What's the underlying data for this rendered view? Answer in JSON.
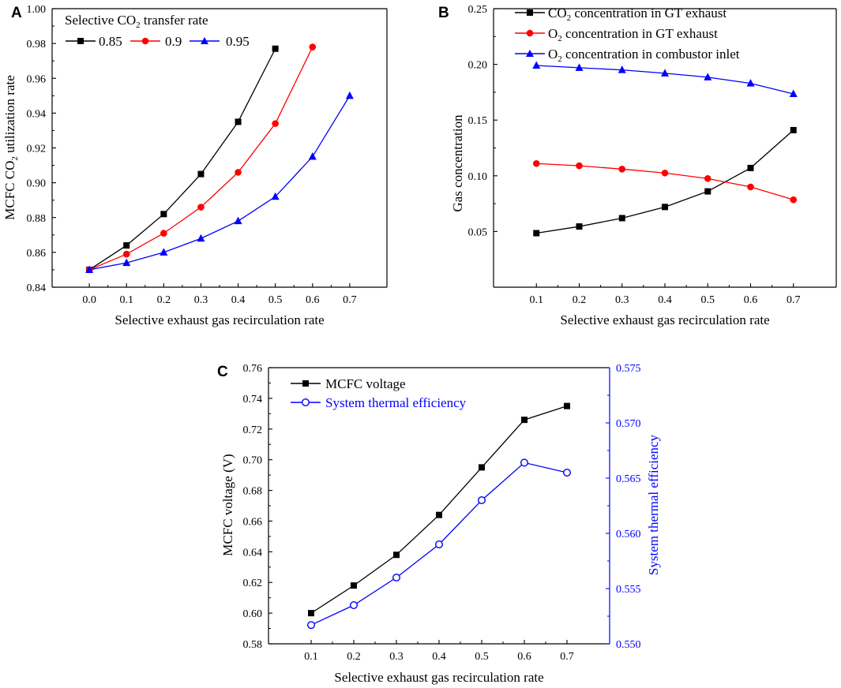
{
  "chart_data": [
    {
      "panel": "A",
      "type": "line",
      "xlabel": "Selective exhaust gas recirculation rate",
      "ylabel": "MCFC CO2 utilization rate",
      "xlim": [
        -0.1,
        0.8
      ],
      "ylim": [
        0.84,
        1.0
      ],
      "xticks": [
        0.0,
        0.1,
        0.2,
        0.3,
        0.4,
        0.5,
        0.6,
        0.7
      ],
      "xtick_labels": [
        "0.0",
        "0.1",
        "0.2",
        "0.3",
        "0.4",
        "0.5",
        "0.6",
        "0.7"
      ],
      "yticks": [
        0.84,
        0.86,
        0.88,
        0.9,
        0.92,
        0.94,
        0.96,
        0.98,
        1.0
      ],
      "ytick_labels": [
        "0.84",
        "0.86",
        "0.88",
        "0.90",
        "0.92",
        "0.94",
        "0.96",
        "0.98",
        "1.00"
      ],
      "legend_title": "Selective CO2 transfer rate",
      "legend_position": "top-left",
      "series": [
        {
          "name": "0.85",
          "color": "#000000",
          "marker": "square",
          "x": [
            0.0,
            0.1,
            0.2,
            0.3,
            0.4,
            0.5
          ],
          "y": [
            0.85,
            0.864,
            0.882,
            0.905,
            0.935,
            0.977
          ]
        },
        {
          "name": "0.9",
          "color": "#ff0000",
          "marker": "circle",
          "x": [
            0.0,
            0.1,
            0.2,
            0.3,
            0.4,
            0.5,
            0.6
          ],
          "y": [
            0.85,
            0.859,
            0.871,
            0.886,
            0.906,
            0.934,
            0.978
          ]
        },
        {
          "name": "0.95",
          "color": "#0000ff",
          "marker": "triangle",
          "x": [
            0.0,
            0.1,
            0.2,
            0.3,
            0.4,
            0.5,
            0.6,
            0.7
          ],
          "y": [
            0.85,
            0.854,
            0.86,
            0.868,
            0.878,
            0.892,
            0.915,
            0.95
          ]
        }
      ]
    },
    {
      "panel": "B",
      "type": "line",
      "xlabel": "Selective exhaust gas recirculation rate",
      "ylabel": "Gas concentration",
      "xlim": [
        0.0,
        0.8
      ],
      "ylim": [
        0.0,
        0.25
      ],
      "xticks": [
        0.1,
        0.2,
        0.3,
        0.4,
        0.5,
        0.6,
        0.7
      ],
      "xtick_labels": [
        "0.1",
        "0.2",
        "0.3",
        "0.4",
        "0.5",
        "0.6",
        "0.7"
      ],
      "yticks": [
        0.05,
        0.1,
        0.15,
        0.2,
        0.25
      ],
      "ytick_labels": [
        "0.05",
        "0.10",
        "0.15",
        "0.20",
        "0.25"
      ],
      "legend_position": "top-left",
      "series": [
        {
          "name": "CO2 concentration in GT exhaust",
          "color": "#000000",
          "marker": "square",
          "x": [
            0.1,
            0.2,
            0.3,
            0.4,
            0.5,
            0.6,
            0.7
          ],
          "y": [
            0.0485,
            0.0545,
            0.062,
            0.072,
            0.086,
            0.107,
            0.141
          ]
        },
        {
          "name": "O2 concentration in GT exhaust",
          "color": "#ff0000",
          "marker": "circle",
          "x": [
            0.1,
            0.2,
            0.3,
            0.4,
            0.5,
            0.6,
            0.7
          ],
          "y": [
            0.111,
            0.109,
            0.106,
            0.1025,
            0.0975,
            0.09,
            0.0785
          ]
        },
        {
          "name": "O2 concentration in combustor inlet",
          "color": "#0000ff",
          "marker": "triangle",
          "x": [
            0.1,
            0.2,
            0.3,
            0.4,
            0.5,
            0.6,
            0.7
          ],
          "y": [
            0.199,
            0.197,
            0.195,
            0.192,
            0.1885,
            0.183,
            0.1735
          ]
        }
      ]
    },
    {
      "panel": "C",
      "type": "line",
      "xlabel": "Selective exhaust gas recirculation rate",
      "ylabel": "MCFC voltage (V)",
      "ylabel_right": "System thermal efficiency",
      "xlim": [
        0.0,
        0.8
      ],
      "ylim": [
        0.58,
        0.76
      ],
      "ylim_right": [
        0.55,
        0.575
      ],
      "xticks": [
        0.1,
        0.2,
        0.3,
        0.4,
        0.5,
        0.6,
        0.7
      ],
      "xtick_labels": [
        "0.1",
        "0.2",
        "0.3",
        "0.4",
        "0.5",
        "0.6",
        "0.7"
      ],
      "yticks": [
        0.58,
        0.6,
        0.62,
        0.64,
        0.66,
        0.68,
        0.7,
        0.72,
        0.74,
        0.76
      ],
      "ytick_labels": [
        "0.58",
        "0.60",
        "0.62",
        "0.64",
        "0.66",
        "0.68",
        "0.70",
        "0.72",
        "0.74",
        "0.76"
      ],
      "yticks_right": [
        0.55,
        0.555,
        0.56,
        0.565,
        0.57,
        0.575
      ],
      "ytick_labels_right": [
        "0.550",
        "0.555",
        "0.560",
        "0.565",
        "0.570",
        "0.575"
      ],
      "legend_position": "top-left",
      "series": [
        {
          "name": "MCFC voltage",
          "color": "#000000",
          "marker": "square",
          "axis": "left",
          "x": [
            0.1,
            0.2,
            0.3,
            0.4,
            0.5,
            0.6,
            0.7
          ],
          "y": [
            0.6,
            0.618,
            0.638,
            0.664,
            0.695,
            0.726,
            0.735
          ]
        },
        {
          "name": "System thermal efficiency",
          "color": "#0000ff",
          "marker": "open-circle",
          "axis": "right",
          "x": [
            0.1,
            0.2,
            0.3,
            0.4,
            0.5,
            0.6,
            0.7
          ],
          "y": [
            0.5517,
            0.5535,
            0.556,
            0.559,
            0.563,
            0.5664,
            0.5655
          ]
        }
      ]
    }
  ]
}
